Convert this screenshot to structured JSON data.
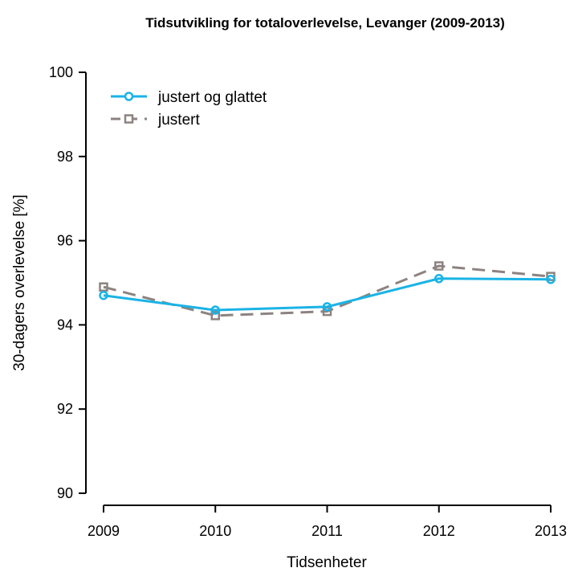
{
  "chart_data": {
    "type": "line",
    "title": "Tidsutvikling for totaloverlevelse, Levanger (2009-2013)",
    "xlabel": "Tidsenheter",
    "ylabel": "30-dagers overlevelse [%]",
    "categories": [
      "2009",
      "2010",
      "2011",
      "2012",
      "2013"
    ],
    "ylim": [
      90,
      100
    ],
    "yticks": [
      90,
      92,
      94,
      96,
      98,
      100
    ],
    "grid": false,
    "legend_position": "top-left",
    "series": [
      {
        "name": "justert og glattet",
        "values": [
          94.7,
          94.35,
          94.43,
          95.1,
          95.08
        ],
        "color": "#1ab3e6",
        "line_style": "solid",
        "marker": "circle"
      },
      {
        "name": "justert",
        "values": [
          94.9,
          94.22,
          94.32,
          95.4,
          95.15
        ],
        "color": "#8c8380",
        "line_style": "dashed",
        "marker": "square"
      }
    ]
  }
}
